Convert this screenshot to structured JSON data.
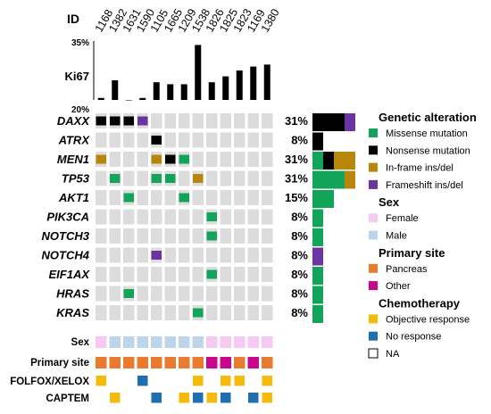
{
  "chart_data": {
    "type": "oncoprint",
    "id_label": "ID",
    "sample_ids": [
      "1168",
      "1382",
      "1631",
      "1590",
      "1105",
      "1665",
      "1209",
      "1538",
      "1826",
      "1825",
      "1823",
      "1169",
      "1380"
    ],
    "ki67": {
      "label": "Ki67",
      "ymax_label": "35%",
      "ymin_label": "20%",
      "ylim": [
        20,
        35
      ],
      "values": [
        20.5,
        25,
        20,
        20.5,
        24.5,
        24,
        24,
        34,
        24.5,
        26,
        27.5,
        28.5,
        29
      ]
    },
    "genes": [
      "DAXX",
      "ATRX",
      "MEN1",
      "TP53",
      "AKT1",
      "PIK3CA",
      "NOTCH3",
      "NOTCH4",
      "EIF1AX",
      "HRAS",
      "KRAS"
    ],
    "percentages": [
      "31%",
      "8%",
      "31%",
      "31%",
      "15%",
      "8%",
      "8%",
      "8%",
      "8%",
      "8%",
      "8%"
    ],
    "alteration_types": [
      "missense",
      "nonsense",
      "inframe",
      "frameshift"
    ],
    "alterations": [
      {
        "gene": 0,
        "sample": 0,
        "type": "nonsense"
      },
      {
        "gene": 0,
        "sample": 1,
        "type": "nonsense"
      },
      {
        "gene": 0,
        "sample": 2,
        "type": "nonsense"
      },
      {
        "gene": 0,
        "sample": 3,
        "type": "frameshift"
      },
      {
        "gene": 1,
        "sample": 4,
        "type": "nonsense"
      },
      {
        "gene": 2,
        "sample": 0,
        "type": "inframe"
      },
      {
        "gene": 2,
        "sample": 4,
        "type": "inframe"
      },
      {
        "gene": 2,
        "sample": 5,
        "type": "nonsense"
      },
      {
        "gene": 2,
        "sample": 6,
        "type": "missense"
      },
      {
        "gene": 3,
        "sample": 1,
        "type": "missense"
      },
      {
        "gene": 3,
        "sample": 4,
        "type": "missense"
      },
      {
        "gene": 3,
        "sample": 5,
        "type": "missense"
      },
      {
        "gene": 3,
        "sample": 7,
        "type": "inframe"
      },
      {
        "gene": 4,
        "sample": 2,
        "type": "missense"
      },
      {
        "gene": 4,
        "sample": 6,
        "type": "missense"
      },
      {
        "gene": 5,
        "sample": 8,
        "type": "missense"
      },
      {
        "gene": 6,
        "sample": 8,
        "type": "missense"
      },
      {
        "gene": 7,
        "sample": 4,
        "type": "frameshift"
      },
      {
        "gene": 8,
        "sample": 8,
        "type": "missense"
      },
      {
        "gene": 9,
        "sample": 2,
        "type": "missense"
      },
      {
        "gene": 10,
        "sample": 7,
        "type": "missense"
      }
    ],
    "gene_summary_counts": [
      {
        "missense": 0,
        "nonsense": 3,
        "inframe": 0,
        "frameshift": 1
      },
      {
        "missense": 0,
        "nonsense": 1,
        "inframe": 0,
        "frameshift": 0
      },
      {
        "missense": 1,
        "nonsense": 1,
        "inframe": 2,
        "frameshift": 0
      },
      {
        "missense": 3,
        "nonsense": 0,
        "inframe": 1,
        "frameshift": 0
      },
      {
        "missense": 2,
        "nonsense": 0,
        "inframe": 0,
        "frameshift": 0
      },
      {
        "missense": 1,
        "nonsense": 0,
        "inframe": 0,
        "frameshift": 0
      },
      {
        "missense": 1,
        "nonsense": 0,
        "inframe": 0,
        "frameshift": 0
      },
      {
        "missense": 0,
        "nonsense": 0,
        "inframe": 0,
        "frameshift": 1
      },
      {
        "missense": 1,
        "nonsense": 0,
        "inframe": 0,
        "frameshift": 0
      },
      {
        "missense": 1,
        "nonsense": 0,
        "inframe": 0,
        "frameshift": 0
      },
      {
        "missense": 1,
        "nonsense": 0,
        "inframe": 0,
        "frameshift": 0
      }
    ],
    "clinical_tracks": [
      {
        "label": "Sex",
        "values": [
          "female",
          "male",
          "male",
          "male",
          "male",
          "male",
          "male",
          "male",
          "female",
          "female",
          "female",
          "female",
          "female"
        ]
      },
      {
        "label": "Primary site",
        "values": [
          "pancreas",
          "pancreas",
          "pancreas",
          "pancreas",
          "pancreas",
          "pancreas",
          "pancreas",
          "pancreas",
          "other",
          "other",
          "pancreas",
          "other",
          "pancreas"
        ]
      },
      {
        "label": "FOLFOX/XELOX",
        "values": [
          "objective",
          "na",
          "na",
          "no_response",
          "na",
          "na",
          "na",
          "objective",
          "na",
          "objective",
          "objective",
          "na",
          "objective"
        ]
      },
      {
        "label": "CAPTEM",
        "values": [
          "na",
          "objective",
          "na",
          "na",
          "no_response",
          "na",
          "objective",
          "no_response",
          "objective",
          "no_response",
          "na",
          "no_response",
          "objective"
        ]
      }
    ],
    "colors": {
      "missense": "#12a55a",
      "nonsense": "#000000",
      "inframe": "#b8860b",
      "frameshift": "#6a35a3",
      "female": "#f8c8f4",
      "male": "#bcd5ea",
      "pancreas": "#e87b2e",
      "other": "#c8078d",
      "objective": "#f5bb0a",
      "no_response": "#1f6eb0",
      "empty": "#dcdcdc"
    },
    "legend": [
      {
        "title": "Genetic alteration",
        "items": [
          {
            "key": "missense",
            "label": "Missense mutation"
          },
          {
            "key": "nonsense",
            "label": "Nonsense mutation"
          },
          {
            "key": "inframe",
            "label": "In-frame ins/del"
          },
          {
            "key": "frameshift",
            "label": "Frameshift ins/del"
          }
        ]
      },
      {
        "title": "Sex",
        "items": [
          {
            "key": "female",
            "label": "Female"
          },
          {
            "key": "male",
            "label": "Male"
          }
        ]
      },
      {
        "title": "Primary site",
        "items": [
          {
            "key": "pancreas",
            "label": "Pancreas"
          },
          {
            "key": "other",
            "label": "Other"
          }
        ]
      },
      {
        "title": "Chemotherapy",
        "items": [
          {
            "key": "objective",
            "label": "Objective response"
          },
          {
            "key": "no_response",
            "label": "No response"
          },
          {
            "key": "na",
            "label": "NA"
          }
        ]
      }
    ]
  }
}
